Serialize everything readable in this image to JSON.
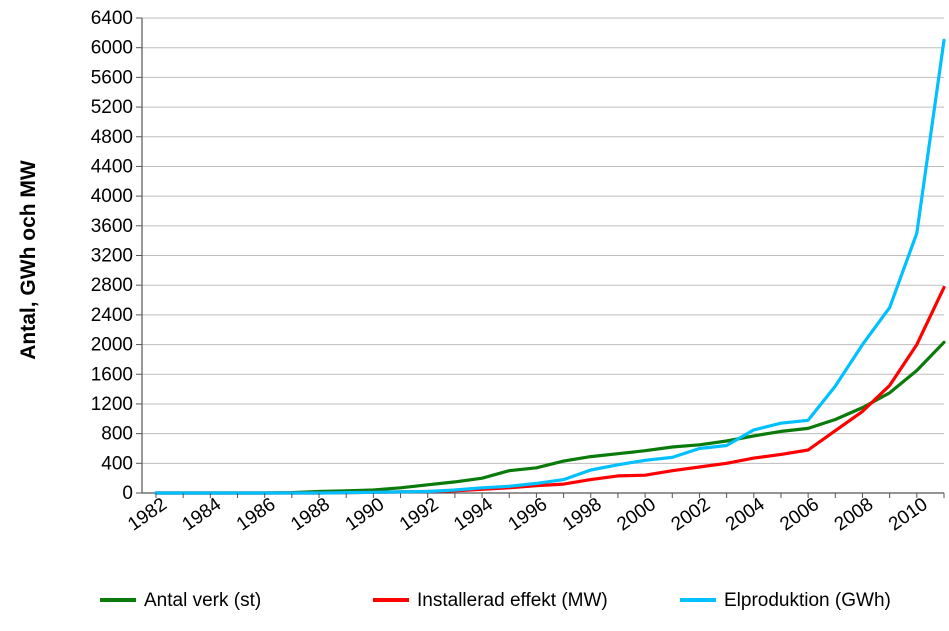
{
  "chart_data": {
    "type": "line",
    "title": "",
    "xlabel": "",
    "ylabel": "Antal, GWh och MW",
    "x": [
      1982,
      1983,
      1984,
      1985,
      1986,
      1987,
      1988,
      1989,
      1990,
      1991,
      1992,
      1993,
      1994,
      1995,
      1996,
      1997,
      1998,
      1999,
      2000,
      2001,
      2002,
      2003,
      2004,
      2005,
      2006,
      2007,
      2008,
      2009,
      2010,
      2011
    ],
    "x_tick_labels": [
      "1982",
      "1984",
      "1986",
      "1988",
      "1990",
      "1992",
      "1994",
      "1996",
      "1998",
      "2000",
      "2002",
      "2004",
      "2006",
      "2008",
      "2010"
    ],
    "y_ticks": [
      0,
      400,
      800,
      1200,
      1600,
      2000,
      2400,
      2800,
      3200,
      3600,
      4000,
      4400,
      4800,
      5200,
      5600,
      6000,
      6400
    ],
    "ylim": [
      0,
      6400
    ],
    "grid": true,
    "legend_position": "bottom",
    "series": [
      {
        "name": "Antal verk (st)",
        "color": "#0a7a0a",
        "values": [
          0,
          0,
          0,
          0,
          0,
          5,
          20,
          30,
          40,
          70,
          110,
          150,
          200,
          300,
          340,
          430,
          490,
          530,
          570,
          620,
          650,
          700,
          770,
          830,
          870,
          990,
          1150,
          1350,
          1650,
          2030
        ]
      },
      {
        "name": "Installerad effekt (MW)",
        "color": "#ff0000",
        "values": [
          0,
          0,
          0,
          0,
          0,
          0,
          0,
          5,
          10,
          15,
          20,
          30,
          50,
          70,
          100,
          120,
          180,
          230,
          240,
          300,
          350,
          400,
          470,
          520,
          580,
          840,
          1100,
          1450,
          2000,
          2770
        ]
      },
      {
        "name": "Elproduktion (GWh)",
        "color": "#00c0ff",
        "values": [
          0,
          0,
          0,
          0,
          0,
          0,
          0,
          5,
          10,
          15,
          20,
          40,
          70,
          90,
          130,
          180,
          310,
          380,
          440,
          480,
          600,
          640,
          850,
          940,
          980,
          1440,
          2000,
          2500,
          3500,
          6100
        ]
      }
    ]
  }
}
